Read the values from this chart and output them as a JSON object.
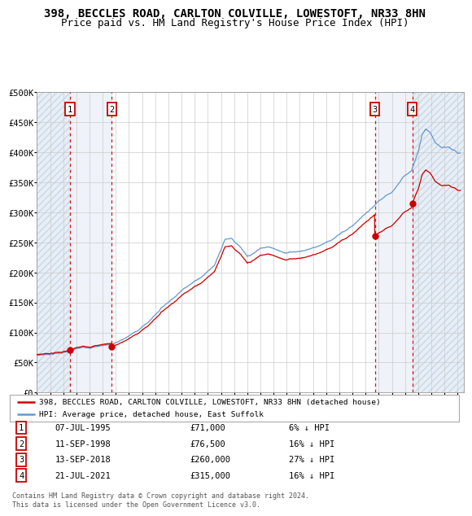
{
  "title": "398, BECCLES ROAD, CARLTON COLVILLE, LOWESTOFT, NR33 8HN",
  "subtitle": "Price paid vs. HM Land Registry's House Price Index (HPI)",
  "ylim": [
    0,
    500000
  ],
  "yticks": [
    0,
    50000,
    100000,
    150000,
    200000,
    250000,
    300000,
    350000,
    400000,
    450000,
    500000
  ],
  "ytick_labels": [
    "£0",
    "£50K",
    "£100K",
    "£150K",
    "£200K",
    "£250K",
    "£300K",
    "£350K",
    "£400K",
    "£450K",
    "£500K"
  ],
  "xlim_start": 1993.0,
  "xlim_end": 2025.5,
  "sale_dates": [
    1995.52,
    1998.7,
    2018.7,
    2021.55
  ],
  "sale_prices": [
    71000,
    76500,
    260000,
    315000
  ],
  "sale_labels": [
    "1",
    "2",
    "3",
    "4"
  ],
  "hpi_anchors": [
    [
      1993.0,
      62000
    ],
    [
      1994.0,
      65000
    ],
    [
      1995.0,
      68000
    ],
    [
      1995.5,
      70000
    ],
    [
      1996.0,
      73000
    ],
    [
      1997.0,
      76000
    ],
    [
      1998.0,
      80000
    ],
    [
      1998.7,
      83000
    ],
    [
      1999.5,
      90000
    ],
    [
      2000.5,
      103000
    ],
    [
      2001.5,
      120000
    ],
    [
      2002.5,
      145000
    ],
    [
      2003.5,
      165000
    ],
    [
      2004.5,
      185000
    ],
    [
      2005.5,
      200000
    ],
    [
      2006.5,
      220000
    ],
    [
      2007.3,
      265000
    ],
    [
      2007.8,
      268000
    ],
    [
      2008.5,
      252000
    ],
    [
      2009.0,
      235000
    ],
    [
      2009.5,
      240000
    ],
    [
      2010.0,
      248000
    ],
    [
      2010.5,
      250000
    ],
    [
      2011.0,
      248000
    ],
    [
      2011.5,
      245000
    ],
    [
      2012.0,
      242000
    ],
    [
      2012.5,
      244000
    ],
    [
      2013.0,
      246000
    ],
    [
      2013.5,
      248000
    ],
    [
      2014.0,
      252000
    ],
    [
      2014.5,
      256000
    ],
    [
      2015.0,
      262000
    ],
    [
      2015.5,
      268000
    ],
    [
      2016.0,
      275000
    ],
    [
      2016.5,
      282000
    ],
    [
      2017.0,
      290000
    ],
    [
      2017.5,
      300000
    ],
    [
      2018.0,
      310000
    ],
    [
      2018.5,
      318000
    ],
    [
      2018.7,
      322000
    ],
    [
      2019.0,
      328000
    ],
    [
      2019.5,
      335000
    ],
    [
      2020.0,
      340000
    ],
    [
      2020.5,
      355000
    ],
    [
      2021.0,
      368000
    ],
    [
      2021.5,
      378000
    ],
    [
      2022.0,
      410000
    ],
    [
      2022.3,
      440000
    ],
    [
      2022.6,
      448000
    ],
    [
      2022.9,
      442000
    ],
    [
      2023.3,
      425000
    ],
    [
      2023.8,
      415000
    ],
    [
      2024.3,
      418000
    ],
    [
      2024.8,
      412000
    ],
    [
      2025.0,
      408000
    ]
  ],
  "transaction_table": [
    {
      "num": "1",
      "date": "07-JUL-1995",
      "price": "£71,000",
      "hpi": "6% ↓ HPI"
    },
    {
      "num": "2",
      "date": "11-SEP-1998",
      "price": "£76,500",
      "hpi": "16% ↓ HPI"
    },
    {
      "num": "3",
      "date": "13-SEP-2018",
      "price": "£260,000",
      "hpi": "27% ↓ HPI"
    },
    {
      "num": "4",
      "date": "21-JUL-2021",
      "price": "£315,000",
      "hpi": "16% ↓ HPI"
    }
  ],
  "legend_line1": "398, BECCLES ROAD, CARLTON COLVILLE, LOWESTOFT, NR33 8HN (detached house)",
  "legend_line2": "HPI: Average price, detached house, East Suffolk",
  "footer": "Contains HM Land Registry data © Crown copyright and database right 2024.\nThis data is licensed under the Open Government Licence v3.0.",
  "red_color": "#cc0000",
  "blue_color": "#6699cc",
  "hatch_color": "#e8eef5",
  "shade_color": "#dce8f5",
  "grid_color": "#cccccc",
  "title_fontsize": 10,
  "subtitle_fontsize": 9
}
